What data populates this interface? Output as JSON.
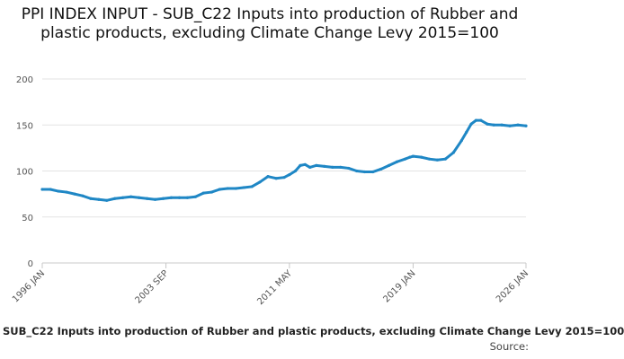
{
  "chart_data": {
    "type": "line",
    "title": "PPI INDEX INPUT - SUB_C22 Inputs into production of Rubber and plastic products, excluding Climate Change Levy 2015=100",
    "xlabel": "",
    "ylabel": "",
    "ylim": [
      0,
      200
    ],
    "yticks": [
      "0",
      "50",
      "100",
      "150",
      "200"
    ],
    "xlim": [
      1996.0,
      2026.0
    ],
    "xticks": [
      {
        "label": "1996 JAN",
        "x": 1996.0
      },
      {
        "label": "2003 SEP",
        "x": 2003.67
      },
      {
        "label": "2011 MAY",
        "x": 2011.33
      },
      {
        "label": "2019 JAN",
        "x": 2019.0
      },
      {
        "label": "2026 JAN",
        "x": 2026.0
      }
    ],
    "grid": true,
    "legend": "none",
    "color": "#1f87c5",
    "series": [
      {
        "name": "SUB_C22 Inputs into production of Rubber and plastic products, excluding Climate Change Levy 2015=100",
        "x": [
          1996.0,
          1996.5,
          1997.0,
          1997.5,
          1998.0,
          1998.5,
          1999.0,
          1999.5,
          2000.0,
          2000.5,
          2001.0,
          2001.5,
          2002.0,
          2002.5,
          2003.0,
          2003.5,
          2004.0,
          2004.5,
          2005.0,
          2005.5,
          2006.0,
          2006.5,
          2007.0,
          2007.5,
          2008.0,
          2008.5,
          2009.0,
          2009.5,
          2010.0,
          2010.5,
          2011.0,
          2011.33,
          2011.7,
          2012.0,
          2012.3,
          2012.6,
          2013.0,
          2013.5,
          2014.0,
          2014.5,
          2015.0,
          2015.5,
          2016.0,
          2016.5,
          2017.0,
          2017.5,
          2018.0,
          2018.5,
          2018.8,
          2019.0,
          2019.5,
          2020.0,
          2020.5,
          2021.0,
          2021.5,
          2022.0,
          2022.3,
          2022.6,
          2022.9,
          2023.2,
          2023.6,
          2024.0,
          2024.5,
          2025.0,
          2025.5,
          2026.0
        ],
        "values": [
          80,
          80,
          78,
          77,
          75,
          73,
          70,
          69,
          68,
          70,
          71,
          72,
          71,
          70,
          69,
          70,
          71,
          71,
          71,
          72,
          76,
          77,
          80,
          81,
          81,
          82,
          83,
          88,
          94,
          92,
          93,
          96,
          100,
          106,
          107,
          104,
          106,
          105,
          104,
          104,
          103,
          100,
          99,
          99,
          102,
          106,
          110,
          113,
          115,
          116,
          115,
          113,
          112,
          113,
          120,
          133,
          142,
          151,
          155,
          155,
          151,
          150,
          150,
          149,
          150,
          149
        ]
      }
    ]
  },
  "footer": {
    "series_label": "SUB_C22 Inputs into production of Rubber and plastic products, excluding Climate Change Levy 2015=100",
    "source_label": "Source:"
  }
}
